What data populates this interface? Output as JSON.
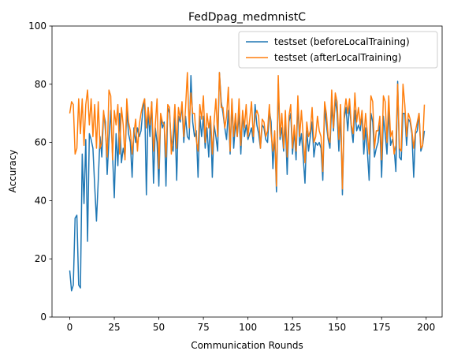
{
  "chart_data": {
    "type": "line",
    "title": "FedDpag_medmnistC",
    "xlabel": "Communication Rounds",
    "ylabel": "Accuracy",
    "xlim": [
      -9.95,
      208.95
    ],
    "ylim": [
      0,
      100
    ],
    "xticks": [
      0,
      25,
      50,
      75,
      100,
      125,
      150,
      175,
      200
    ],
    "yticks": [
      0,
      20,
      40,
      60,
      80,
      100
    ],
    "grid": false,
    "legend_position": "top-right",
    "series": [
      {
        "name": "testset (beforeLocalTraining)",
        "color": "#1f77b4",
        "x": [
          0,
          1,
          2,
          3,
          4,
          5,
          6,
          7,
          8,
          9,
          10,
          11,
          12,
          13,
          14,
          15,
          16,
          17,
          18,
          19,
          20,
          21,
          22,
          23,
          24,
          25,
          26,
          27,
          28,
          29,
          30,
          31,
          32,
          33,
          34,
          35,
          36,
          37,
          38,
          39,
          40,
          41,
          42,
          43,
          44,
          45,
          46,
          47,
          48,
          49,
          50,
          51,
          52,
          53,
          54,
          55,
          56,
          57,
          58,
          59,
          60,
          61,
          62,
          63,
          64,
          65,
          66,
          67,
          68,
          69,
          70,
          71,
          72,
          73,
          74,
          75,
          76,
          77,
          78,
          79,
          80,
          81,
          82,
          83,
          84,
          85,
          86,
          87,
          88,
          89,
          90,
          91,
          92,
          93,
          94,
          95,
          96,
          97,
          98,
          99,
          100,
          101,
          102,
          103,
          104,
          105,
          106,
          107,
          108,
          109,
          110,
          111,
          112,
          113,
          114,
          115,
          116,
          117,
          118,
          119,
          120,
          121,
          122,
          123,
          124,
          125,
          126,
          127,
          128,
          129,
          130,
          131,
          132,
          133,
          134,
          135,
          136,
          137,
          138,
          139,
          140,
          141,
          142,
          143,
          144,
          145,
          146,
          147,
          148,
          149,
          150,
          151,
          152,
          153,
          154,
          155,
          156,
          157,
          158,
          159,
          160,
          161,
          162,
          163,
          164,
          165,
          166,
          167,
          168,
          169,
          170,
          171,
          172,
          173,
          174,
          175,
          176,
          177,
          178,
          179,
          180,
          181,
          182,
          183,
          184,
          185,
          186,
          187,
          188,
          189,
          190,
          191,
          192,
          193,
          194,
          195,
          196,
          197,
          198,
          199
        ],
        "values": [
          16,
          9,
          11,
          34,
          35,
          11,
          10,
          56,
          39,
          61,
          26,
          63,
          61,
          58,
          45,
          33,
          47,
          62,
          55,
          70,
          67,
          49,
          61,
          71,
          56,
          41,
          63,
          52,
          70,
          53,
          58,
          55,
          71,
          63,
          60,
          48,
          65,
          60,
          65,
          62,
          64,
          71,
          75,
          42,
          72,
          62,
          74,
          46,
          65,
          60,
          45,
          69,
          65,
          67,
          45,
          72,
          70,
          60,
          57,
          69,
          47,
          69,
          67,
          73,
          60,
          69,
          62,
          61,
          83,
          67,
          62,
          64,
          48,
          69,
          62,
          69,
          58,
          65,
          55,
          69,
          48,
          66,
          62,
          57,
          84,
          74,
          70,
          65,
          61,
          71,
          56,
          74,
          58,
          67,
          62,
          70,
          56,
          70,
          62,
          66,
          61,
          63,
          65,
          60,
          73,
          66,
          63,
          58,
          66,
          65,
          61,
          60,
          71,
          67,
          51,
          63,
          43,
          80,
          61,
          65,
          57,
          67,
          49,
          67,
          70,
          56,
          64,
          54,
          74,
          59,
          63,
          55,
          46,
          64,
          57,
          62,
          67,
          55,
          60,
          59,
          60,
          58,
          47,
          72,
          66,
          61,
          58,
          73,
          64,
          75,
          70,
          57,
          70,
          42,
          68,
          72,
          64,
          73,
          65,
          60,
          71,
          64,
          66,
          64,
          70,
          56,
          65,
          57,
          47,
          70,
          67,
          55,
          58,
          60,
          66,
          48,
          69,
          63,
          56,
          71,
          59,
          61,
          58,
          50,
          81,
          55,
          54,
          70,
          70,
          59,
          68,
          67,
          63,
          48,
          63,
          64,
          70,
          57,
          59,
          64
        ]
      },
      {
        "name": "testset (afterLocalTraining)",
        "color": "#ff7f0e",
        "x": [
          0,
          1,
          2,
          3,
          4,
          5,
          6,
          7,
          8,
          9,
          10,
          11,
          12,
          13,
          14,
          15,
          16,
          17,
          18,
          19,
          20,
          21,
          22,
          23,
          24,
          25,
          26,
          27,
          28,
          29,
          30,
          31,
          32,
          33,
          34,
          35,
          36,
          37,
          38,
          39,
          40,
          41,
          42,
          43,
          44,
          45,
          46,
          47,
          48,
          49,
          50,
          51,
          52,
          53,
          54,
          55,
          56,
          57,
          58,
          59,
          60,
          61,
          62,
          63,
          64,
          65,
          66,
          67,
          68,
          69,
          70,
          71,
          72,
          73,
          74,
          75,
          76,
          77,
          78,
          79,
          80,
          81,
          82,
          83,
          84,
          85,
          86,
          87,
          88,
          89,
          90,
          91,
          92,
          93,
          94,
          95,
          96,
          97,
          98,
          99,
          100,
          101,
          102,
          103,
          104,
          105,
          106,
          107,
          108,
          109,
          110,
          111,
          112,
          113,
          114,
          115,
          116,
          117,
          118,
          119,
          120,
          121,
          122,
          123,
          124,
          125,
          126,
          127,
          128,
          129,
          130,
          131,
          132,
          133,
          134,
          135,
          136,
          137,
          138,
          139,
          140,
          141,
          142,
          143,
          144,
          145,
          146,
          147,
          148,
          149,
          150,
          151,
          152,
          153,
          154,
          155,
          156,
          157,
          158,
          159,
          160,
          161,
          162,
          163,
          164,
          165,
          166,
          167,
          168,
          169,
          170,
          171,
          172,
          173,
          174,
          175,
          176,
          177,
          178,
          179,
          180,
          181,
          182,
          183,
          184,
          185,
          186,
          187,
          188,
          189,
          190,
          191,
          192,
          193,
          194,
          195,
          196,
          197,
          198,
          199
        ],
        "values": [
          70,
          74,
          73,
          56,
          58,
          75,
          63,
          75,
          59,
          73,
          78,
          66,
          75,
          62,
          73,
          58,
          74,
          58,
          60,
          71,
          64,
          55,
          78,
          76,
          54,
          71,
          66,
          73,
          56,
          72,
          66,
          54,
          75,
          67,
          64,
          56,
          63,
          68,
          57,
          66,
          70,
          73,
          75,
          65,
          72,
          66,
          74,
          57,
          66,
          75,
          51,
          70,
          67,
          66,
          55,
          73,
          72,
          56,
          63,
          73,
          58,
          72,
          68,
          74,
          62,
          72,
          84,
          65,
          77,
          70,
          70,
          61,
          57,
          73,
          68,
          76,
          60,
          70,
          65,
          69,
          56,
          67,
          75,
          62,
          84,
          72,
          72,
          65,
          69,
          79,
          57,
          75,
          62,
          70,
          62,
          75,
          59,
          71,
          65,
          73,
          62,
          68,
          74,
          62,
          69,
          71,
          69,
          58,
          68,
          67,
          62,
          64,
          73,
          63,
          57,
          64,
          45,
          83,
          62,
          70,
          58,
          71,
          55,
          69,
          73,
          58,
          66,
          57,
          76,
          62,
          71,
          62,
          53,
          67,
          62,
          64,
          72,
          60,
          62,
          69,
          64,
          62,
          50,
          74,
          70,
          62,
          60,
          78,
          65,
          77,
          74,
          61,
          73,
          44,
          70,
          75,
          70,
          75,
          66,
          63,
          77,
          67,
          72,
          66,
          71,
          61,
          70,
          63,
          56,
          76,
          74,
          58,
          64,
          64,
          69,
          54,
          76,
          74,
          60,
          76,
          62,
          64,
          56,
          59,
          80,
          58,
          57,
          80,
          73,
          62,
          70,
          68,
          64,
          58,
          64,
          67,
          70,
          58,
          59,
          73
        ]
      }
    ]
  }
}
